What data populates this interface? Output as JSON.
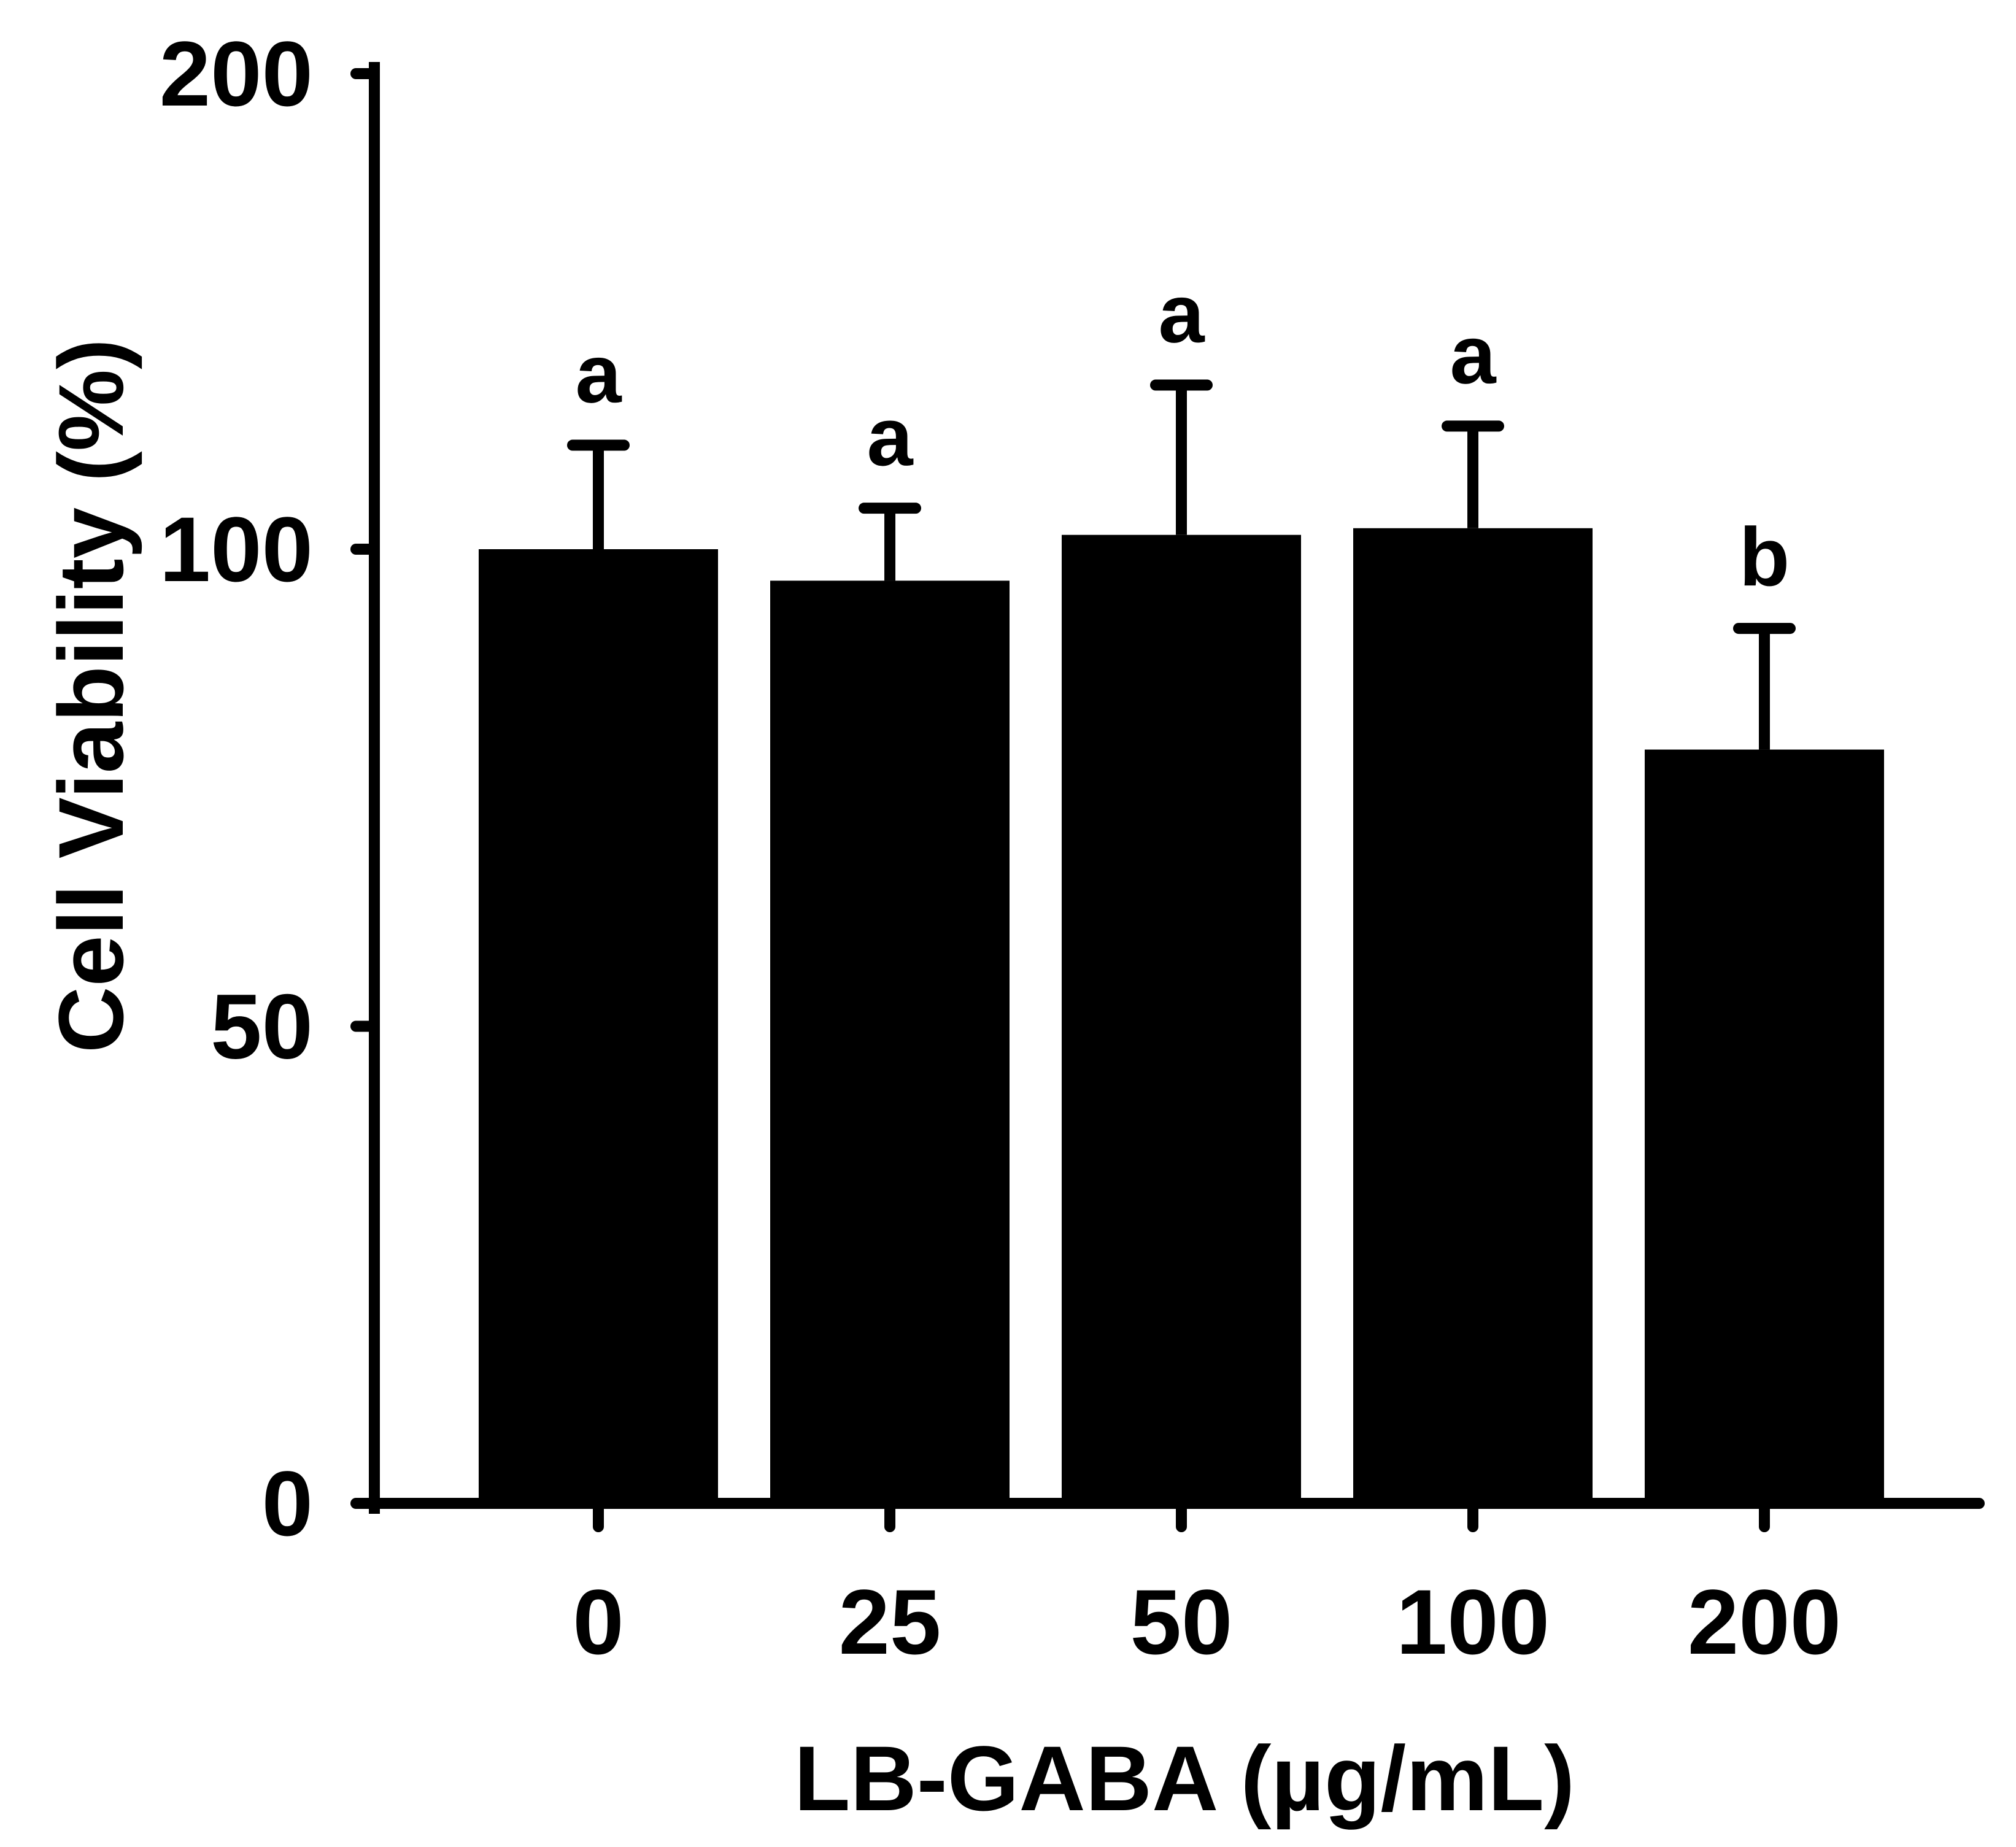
{
  "chart_data": {
    "type": "bar",
    "title": "",
    "xlabel": "LB-GABA (µg/mL)",
    "ylabel": "Cell Viability (%)",
    "categories": [
      "0",
      "25",
      "50",
      "100",
      "200"
    ],
    "values": [
      100,
      96.7,
      101.5,
      102.2,
      79.0
    ],
    "errors": [
      10.9,
      7.6,
      15.7,
      10.7,
      12.7
    ],
    "significance_labels": [
      "a",
      "a",
      "a",
      "a",
      "b"
    ],
    "y_ticks": [
      0,
      50,
      100,
      200
    ],
    "ylim": [
      0,
      200
    ],
    "y_scale": "broken-linear",
    "grid": false,
    "legend": "none",
    "colors": {
      "bar": "#000000",
      "axis": "#000000",
      "background": "#ffffff"
    }
  }
}
